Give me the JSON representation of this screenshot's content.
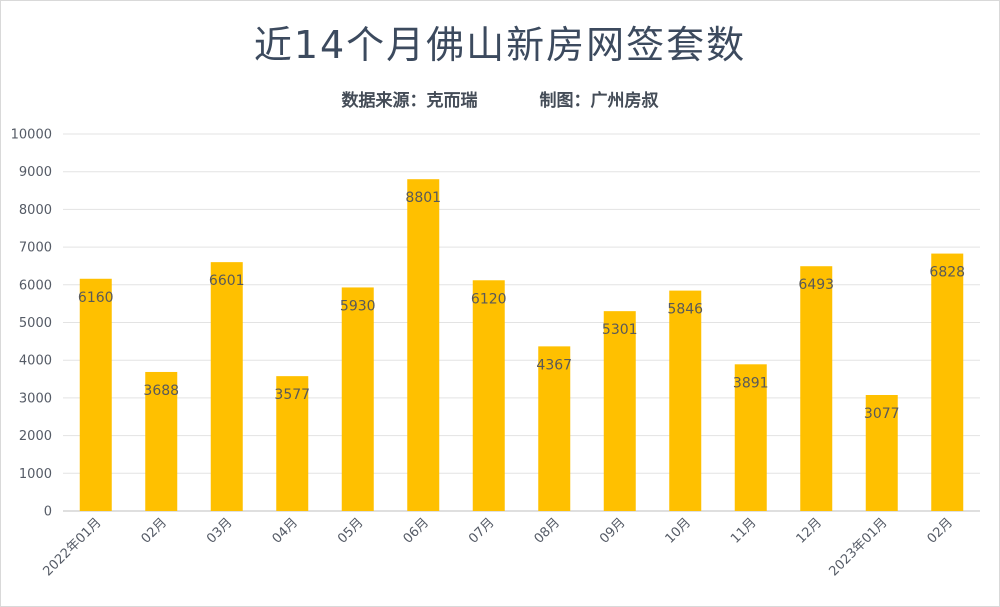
{
  "chart_data": {
    "type": "bar",
    "title": "近14个月佛山新房网签套数",
    "subtitle_source": "数据来源：克而瑞",
    "subtitle_author": "制图：广州房叔",
    "categories": [
      "2022年01月",
      "02月",
      "03月",
      "04月",
      "05月",
      "06月",
      "07月",
      "08月",
      "09月",
      "10月",
      "11月",
      "12月",
      "2023年01月",
      "02月"
    ],
    "values": [
      6160,
      3688,
      6601,
      3577,
      5930,
      8801,
      6120,
      4367,
      5301,
      5846,
      3891,
      6493,
      3077,
      6828
    ],
    "ylim": [
      0,
      10000
    ],
    "yticks": [
      0,
      1000,
      2000,
      3000,
      4000,
      5000,
      6000,
      7000,
      8000,
      9000,
      10000
    ],
    "bar_color": "#FFC000",
    "grid": true,
    "xlabel": "",
    "ylabel": ""
  }
}
